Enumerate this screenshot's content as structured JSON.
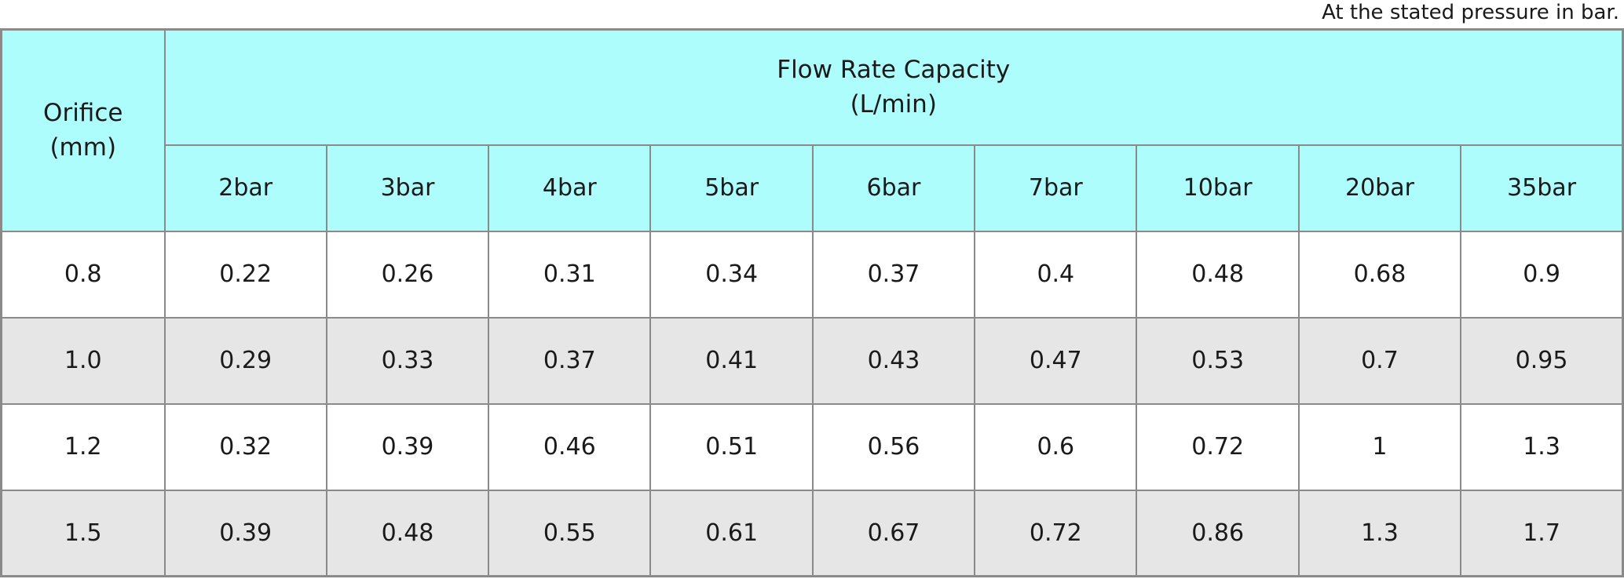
{
  "note": "At the stated pressure in bar.",
  "header": {
    "orifice_line1": "Orifice",
    "orifice_line2": "(mm)",
    "group_line1": "Flow Rate Capacity",
    "group_line2": "(L/min)"
  },
  "colors": {
    "header_bg": "#ADFDFD",
    "row_even_bg": "#FFFFFF",
    "row_odd_bg": "#E6E6E6",
    "border": "#8A8A8A",
    "text": "#1A1A1A"
  },
  "chart_data": {
    "type": "table",
    "title": "Flow Rate Capacity (L/min)",
    "note": "At the stated pressure in bar.",
    "row_header": "Orifice (mm)",
    "columns": [
      "2bar",
      "3bar",
      "4bar",
      "5bar",
      "6bar",
      "7bar",
      "10bar",
      "20bar",
      "35bar"
    ],
    "rows": [
      {
        "orifice": "0.8",
        "values": [
          0.22,
          0.26,
          0.31,
          0.34,
          0.37,
          0.4,
          0.48,
          0.68,
          0.9
        ]
      },
      {
        "orifice": "1.0",
        "values": [
          0.29,
          0.33,
          0.37,
          0.41,
          0.43,
          0.47,
          0.53,
          0.7,
          0.95
        ]
      },
      {
        "orifice": "1.2",
        "values": [
          0.32,
          0.39,
          0.46,
          0.51,
          0.56,
          0.6,
          0.72,
          1,
          1.3
        ]
      },
      {
        "orifice": "1.5",
        "values": [
          0.39,
          0.48,
          0.55,
          0.61,
          0.67,
          0.72,
          0.86,
          1.3,
          1.7
        ]
      }
    ]
  }
}
